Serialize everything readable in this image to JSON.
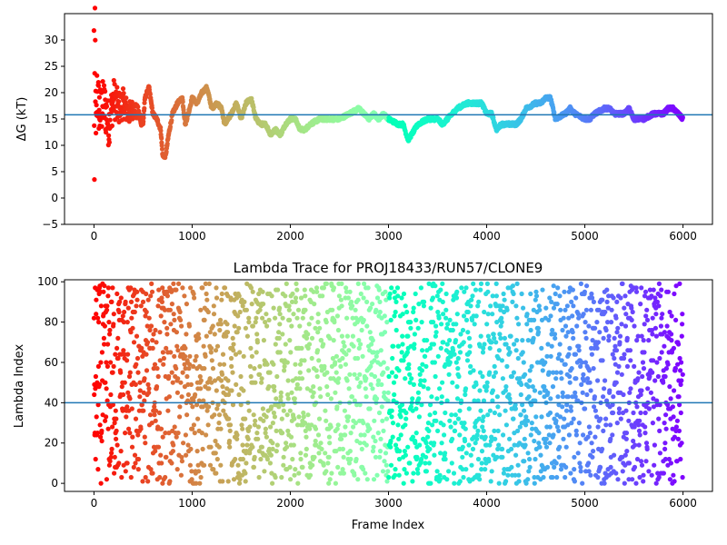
{
  "chart_data": [
    {
      "type": "scatter",
      "title": "",
      "xlabel": "",
      "ylabel": "ΔG (kT)",
      "xlim": [
        -300,
        6300
      ],
      "ylim": [
        -5,
        35
      ],
      "xticks": [
        0,
        1000,
        2000,
        3000,
        4000,
        5000,
        6000
      ],
      "yticks": [
        -5,
        0,
        5,
        10,
        15,
        20,
        25,
        30
      ],
      "hline": 15.8,
      "hline_color": "#1f77b4",
      "colormap": "rainbow (red at start → violet at end)",
      "x_range": [
        0,
        6000
      ],
      "trend_points": [
        [
          0,
          30
        ],
        [
          5,
          2
        ],
        [
          10,
          34
        ],
        [
          20,
          10
        ],
        [
          30,
          20
        ],
        [
          60,
          16
        ],
        [
          100,
          18
        ],
        [
          150,
          14
        ],
        [
          200,
          19
        ],
        [
          250,
          17
        ],
        [
          300,
          18
        ],
        [
          350,
          16
        ],
        [
          400,
          17
        ],
        [
          450,
          16
        ],
        [
          500,
          14
        ],
        [
          520,
          19
        ],
        [
          560,
          21
        ],
        [
          600,
          16
        ],
        [
          640,
          15
        ],
        [
          680,
          13
        ],
        [
          700,
          8
        ],
        [
          730,
          8
        ],
        [
          760,
          12
        ],
        [
          800,
          16
        ],
        [
          850,
          18
        ],
        [
          900,
          19
        ],
        [
          930,
          14
        ],
        [
          960,
          16
        ],
        [
          1000,
          19
        ],
        [
          1050,
          18
        ],
        [
          1100,
          20
        ],
        [
          1150,
          21
        ],
        [
          1200,
          17
        ],
        [
          1250,
          18
        ],
        [
          1300,
          17
        ],
        [
          1330,
          14
        ],
        [
          1400,
          16
        ],
        [
          1450,
          18
        ],
        [
          1500,
          15
        ],
        [
          1550,
          18
        ],
        [
          1600,
          19
        ],
        [
          1650,
          15
        ],
        [
          1700,
          14
        ],
        [
          1750,
          14
        ],
        [
          1800,
          12
        ],
        [
          1850,
          13
        ],
        [
          1900,
          12
        ],
        [
          1950,
          14
        ],
        [
          2000,
          15
        ],
        [
          2050,
          15
        ],
        [
          2100,
          13
        ],
        [
          2150,
          13
        ],
        [
          2200,
          14
        ],
        [
          2300,
          15
        ],
        [
          2400,
          15
        ],
        [
          2500,
          15
        ],
        [
          2600,
          16
        ],
        [
          2700,
          17
        ],
        [
          2750,
          16
        ],
        [
          2800,
          15
        ],
        [
          2850,
          16
        ],
        [
          2900,
          15
        ],
        [
          2950,
          16
        ],
        [
          3000,
          15
        ],
        [
          3100,
          14
        ],
        [
          3150,
          14
        ],
        [
          3200,
          11
        ],
        [
          3300,
          14
        ],
        [
          3400,
          15
        ],
        [
          3500,
          15
        ],
        [
          3550,
          14
        ],
        [
          3600,
          15
        ],
        [
          3700,
          17
        ],
        [
          3800,
          18
        ],
        [
          3900,
          18
        ],
        [
          3950,
          18
        ],
        [
          4000,
          16
        ],
        [
          4050,
          16
        ],
        [
          4100,
          13
        ],
        [
          4150,
          14
        ],
        [
          4200,
          14
        ],
        [
          4300,
          14
        ],
        [
          4350,
          15
        ],
        [
          4400,
          17
        ],
        [
          4500,
          18
        ],
        [
          4550,
          18
        ],
        [
          4600,
          19
        ],
        [
          4650,
          19
        ],
        [
          4700,
          15
        ],
        [
          4800,
          16
        ],
        [
          4850,
          17
        ],
        [
          4900,
          16
        ],
        [
          5000,
          15
        ],
        [
          5050,
          15
        ],
        [
          5100,
          16
        ],
        [
          5200,
          17
        ],
        [
          5250,
          17
        ],
        [
          5300,
          16
        ],
        [
          5400,
          16
        ],
        [
          5450,
          17
        ],
        [
          5500,
          15
        ],
        [
          5600,
          15
        ],
        [
          5700,
          16
        ],
        [
          5800,
          16
        ],
        [
          5850,
          17
        ],
        [
          5900,
          17
        ],
        [
          5950,
          16
        ],
        [
          6000,
          15
        ]
      ]
    },
    {
      "type": "scatter",
      "title": "Lambda Trace for PROJ18433/RUN57/CLONE9",
      "xlabel": "Frame Index",
      "ylabel": "Lambda Index",
      "xlim": [
        -300,
        6300
      ],
      "ylim": [
        -4,
        101
      ],
      "xticks": [
        0,
        1000,
        2000,
        3000,
        4000,
        5000,
        6000
      ],
      "yticks": [
        0,
        20,
        40,
        60,
        80,
        100
      ],
      "hline": 40,
      "hline_color": "#1f77b4",
      "colormap": "rainbow (red at start → violet at end)",
      "x_range": [
        0,
        6000
      ],
      "y_range": [
        0,
        99
      ]
    }
  ]
}
